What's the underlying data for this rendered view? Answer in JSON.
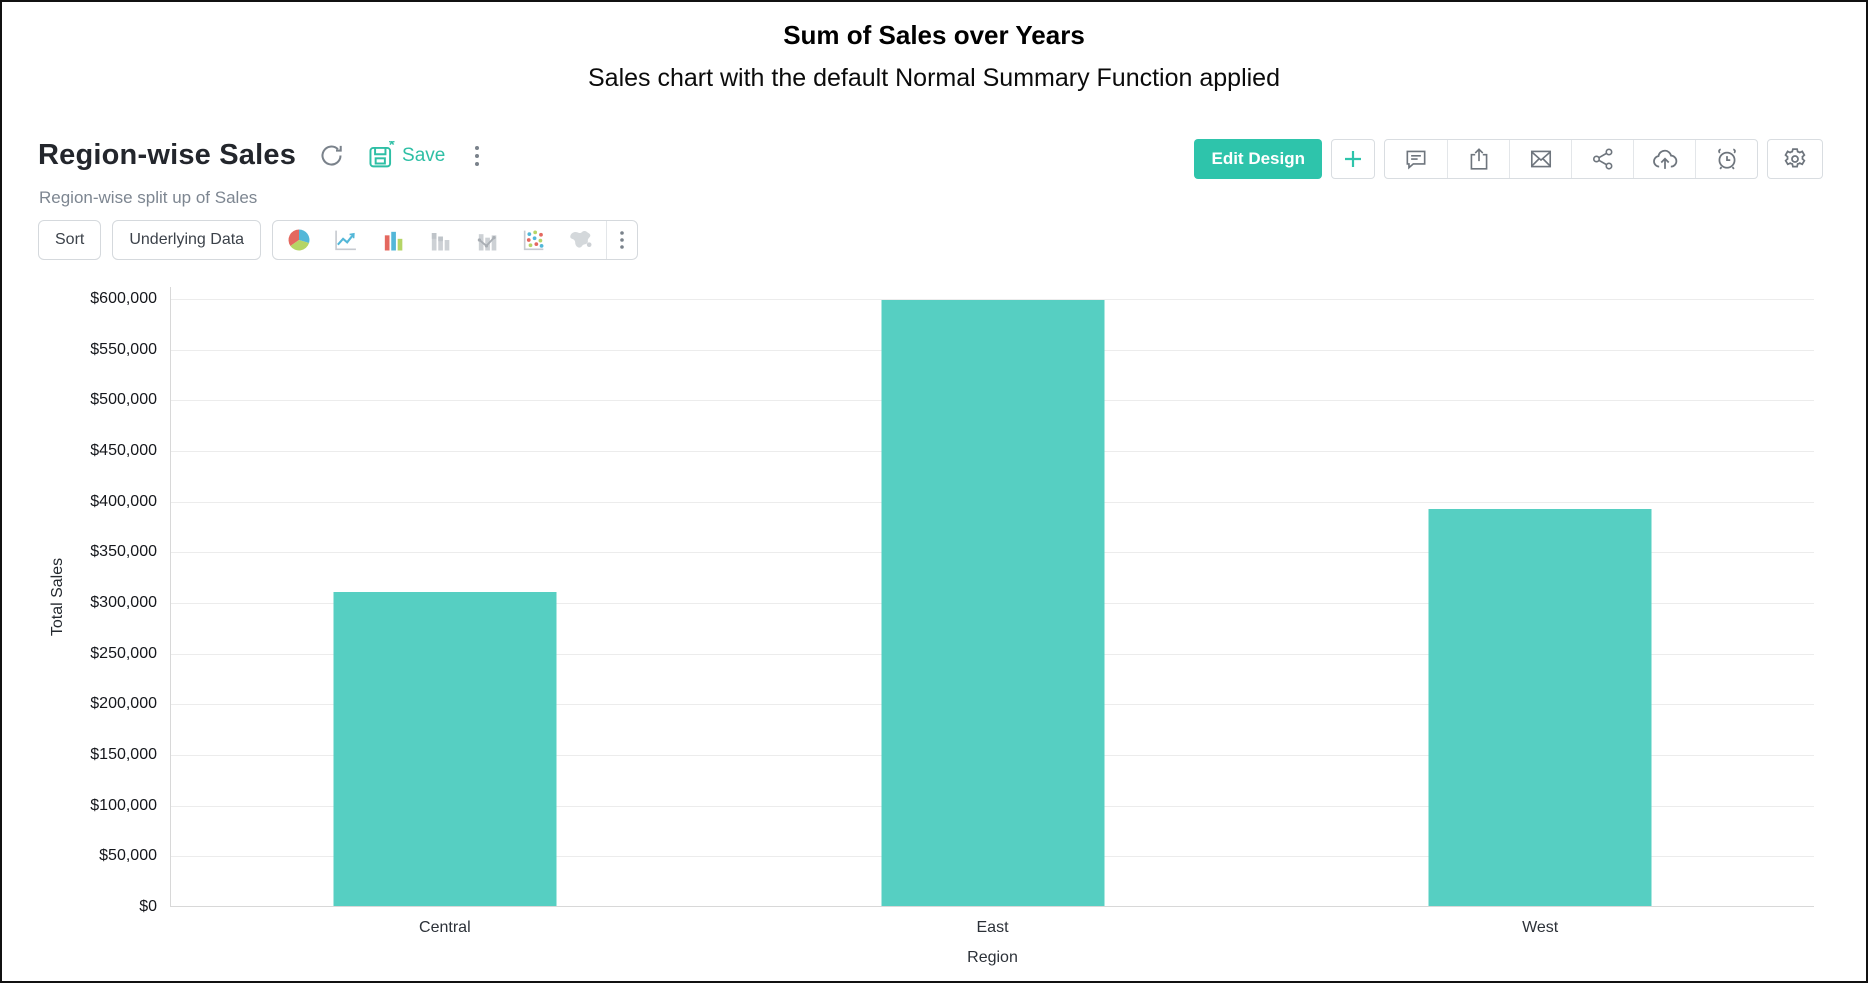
{
  "page": {
    "title": "Sum of Sales over Years",
    "subtitle": "Sales chart with the default Normal Summary Function applied"
  },
  "report": {
    "name": "Region-wise Sales",
    "description": "Region-wise split up of Sales",
    "save_label": "Save",
    "header_icons": [
      "refresh-icon",
      "save-icon",
      "kebab-menu-icon"
    ]
  },
  "actions": {
    "edit_design_label": "Edit Design",
    "icons": [
      "plus-icon",
      "comment-icon",
      "export-icon",
      "mail-icon",
      "share-icon",
      "cloud-upload-icon",
      "schedule-icon",
      "settings-gear-icon"
    ]
  },
  "toolbar": {
    "sort_label": "Sort",
    "underlying_data_label": "Underlying Data",
    "chart_type_icons": [
      "pie-chart-icon",
      "line-chart-icon",
      "bar-chart-icon",
      "stacked-bar-icon",
      "combo-chart-icon",
      "scatter-plot-icon",
      "map-chart-icon",
      "kebab-menu-icon"
    ]
  },
  "colors": {
    "accent_teal": "#2ec4ab",
    "save_teal": "#2ebfa5",
    "bar_teal": "#56cfc2",
    "icon_gray": "#6e757d",
    "grid_gray": "#ececec",
    "icon_red": "#e4685f",
    "icon_blue": "#53b7d8",
    "icon_green": "#b5d566"
  },
  "chart_data": {
    "type": "bar",
    "categories": [
      "Central",
      "East",
      "West"
    ],
    "values": [
      310000,
      598000,
      392000
    ],
    "title": "",
    "xlabel": "Region",
    "ylabel": "Total Sales",
    "ylim": [
      0,
      600000
    ],
    "ytick_step": 50000,
    "ytick_labels": [
      "$0",
      "$50,000",
      "$100,000",
      "$150,000",
      "$200,000",
      "$250,000",
      "$300,000",
      "$350,000",
      "$400,000",
      "$450,000",
      "$500,000",
      "$550,000",
      "$600,000"
    ],
    "bar_color": "#56cfc2",
    "grid": true,
    "legend_position": "none"
  }
}
